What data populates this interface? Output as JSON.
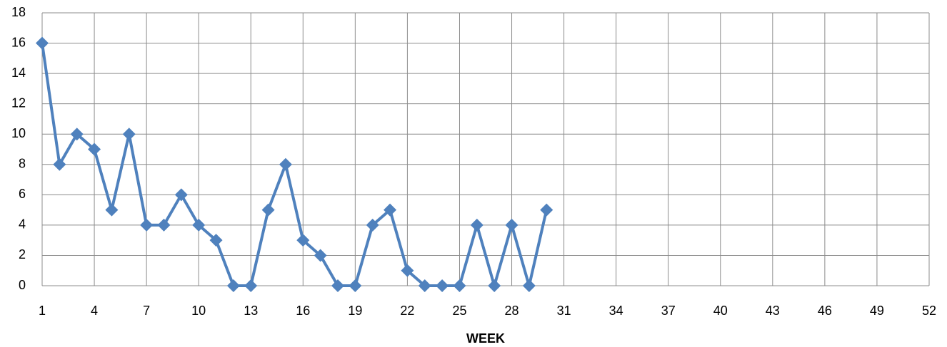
{
  "chart_data": {
    "type": "line",
    "x_label": "WEEK",
    "x": [
      1,
      2,
      3,
      4,
      5,
      6,
      7,
      8,
      9,
      10,
      11,
      12,
      13,
      14,
      15,
      16,
      17,
      18,
      19,
      20,
      21,
      22,
      23,
      24,
      25,
      26,
      27,
      28,
      29,
      30
    ],
    "values": [
      16,
      8,
      10,
      9,
      5,
      10,
      4,
      4,
      6,
      4,
      3,
      0,
      0,
      5,
      8,
      3,
      2,
      0,
      0,
      4,
      5,
      1,
      0,
      0,
      0,
      4,
      0,
      4,
      0,
      5
    ],
    "color": "#4f81bd",
    "xlim": [
      1,
      52
    ],
    "xticks": [
      1,
      4,
      7,
      10,
      13,
      16,
      19,
      22,
      25,
      28,
      31,
      34,
      37,
      40,
      43,
      46,
      49,
      52
    ],
    "ylim": [
      0,
      18
    ],
    "yticks": [
      0,
      2,
      4,
      6,
      8,
      10,
      12,
      14,
      16,
      18
    ],
    "grid": true
  }
}
